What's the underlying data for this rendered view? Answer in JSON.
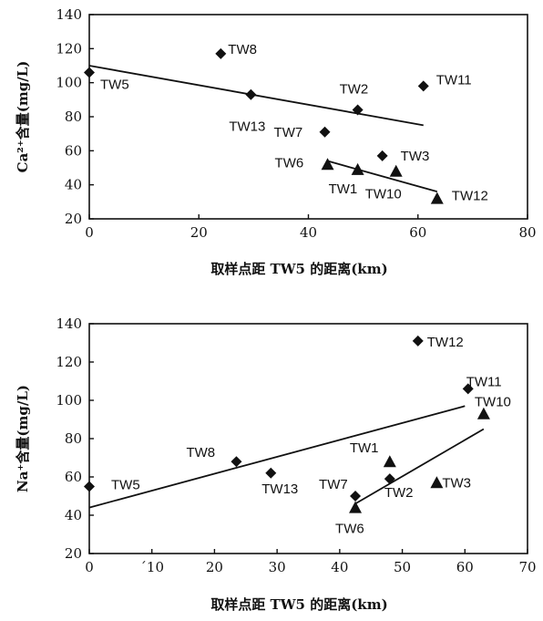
{
  "chart_data": [
    {
      "type": "scatter",
      "title": "",
      "xlabel": "取样点距 TW5 的距离(km)",
      "ylabel": "Ca²⁺含量(mg/L)",
      "xlim": [
        0,
        80
      ],
      "ylim": [
        20,
        140
      ],
      "x_ticks": [
        "0",
        "20",
        "40",
        "60",
        "80"
      ],
      "y_ticks": [
        "20",
        "40",
        "60",
        "80",
        "100",
        "120",
        "140"
      ],
      "grid": false,
      "series": [
        {
          "marker": "diamond",
          "points": [
            {
              "label": "TW5",
              "x": 0,
              "y": 106
            },
            {
              "label": "TW8",
              "x": 24,
              "y": 117
            },
            {
              "label": "TW13",
              "x": 29.5,
              "y": 93
            },
            {
              "label": "TW2",
              "x": 49,
              "y": 84
            },
            {
              "label": "TW7",
              "x": 43,
              "y": 71
            },
            {
              "label": "TW11",
              "x": 61,
              "y": 98
            },
            {
              "label": "TW3",
              "x": 53.5,
              "y": 57
            }
          ],
          "trendline": {
            "x": [
              0,
              61
            ],
            "y": [
              110,
              75
            ]
          }
        },
        {
          "marker": "triangle",
          "points": [
            {
              "label": "TW6",
              "x": 43.5,
              "y": 52
            },
            {
              "label": "TW1",
              "x": 49,
              "y": 49
            },
            {
              "label": "TW10",
              "x": 56,
              "y": 48
            },
            {
              "label": "TW12",
              "x": 63.5,
              "y": 32
            }
          ],
          "trendline": {
            "x": [
              43.5,
              63.5
            ],
            "y": [
              54,
              36
            ]
          }
        }
      ]
    },
    {
      "type": "scatter",
      "title": "",
      "xlabel": "取样点距 TW5 的距离(km)",
      "ylabel": "Na⁺含量(mg/L)",
      "xlim": [
        0,
        70
      ],
      "ylim": [
        20,
        140
      ],
      "x_ticks": [
        "0",
        "´10",
        "20",
        "30",
        "40",
        "50",
        "60",
        "70"
      ],
      "y_ticks": [
        "20",
        "40",
        "60",
        "80",
        "100",
        "120",
        "140"
      ],
      "grid": false,
      "series": [
        {
          "marker": "diamond",
          "points": [
            {
              "label": "TW5",
              "x": 0,
              "y": 55
            },
            {
              "label": "TW8",
              "x": 23.5,
              "y": 68
            },
            {
              "label": "TW13",
              "x": 29,
              "y": 62
            },
            {
              "label": "TW7",
              "x": 42.5,
              "y": 50
            },
            {
              "label": "TW2",
              "x": 48,
              "y": 59
            },
            {
              "label": "TW12",
              "x": 52.5,
              "y": 131
            },
            {
              "label": "TW11",
              "x": 60.5,
              "y": 106
            }
          ],
          "trendline": {
            "x": [
              0,
              60
            ],
            "y": [
              44,
              97
            ]
          }
        },
        {
          "marker": "triangle",
          "points": [
            {
              "label": "TW6",
              "x": 42.5,
              "y": 44
            },
            {
              "label": "TW1",
              "x": 48,
              "y": 68
            },
            {
              "label": "TW3",
              "x": 55.5,
              "y": 57
            },
            {
              "label": "TW10",
              "x": 63,
              "y": 93
            }
          ],
          "trendline": {
            "x": [
              42.5,
              63
            ],
            "y": [
              46,
              85
            ]
          }
        }
      ]
    }
  ]
}
